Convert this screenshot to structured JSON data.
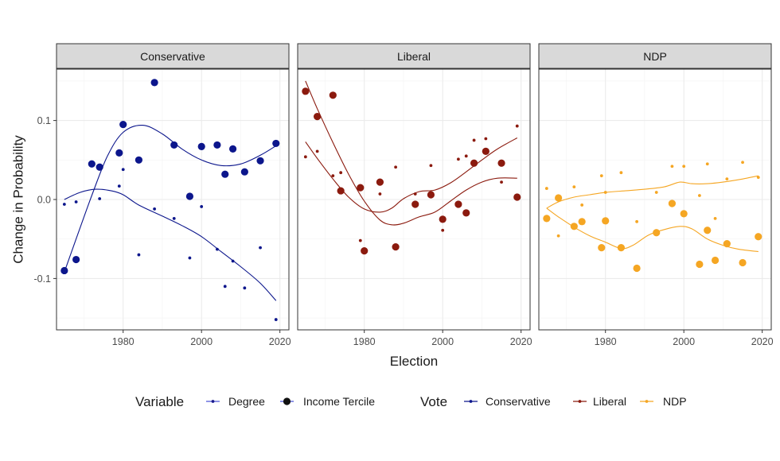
{
  "chart_data": {
    "type": "scatter",
    "title": "",
    "xlabel": "Election",
    "ylabel": "Change in Probability",
    "xlim": [
      1963,
      2022.3
    ],
    "ylim": [
      -0.165,
      0.165
    ],
    "x_ticks": [
      1980,
      2000,
      2020
    ],
    "x_tick_labels": [
      "1980",
      "2000",
      "2020"
    ],
    "y_ticks": [
      -0.1,
      0.0,
      0.1
    ],
    "y_tick_labels": [
      "-0.1",
      "0.0",
      "0.1"
    ],
    "grid": true,
    "facets": [
      {
        "label": "Conservative",
        "color": "#0c168c",
        "series": [
          {
            "name": "Income Tercile",
            "x": [
              1965,
              1968,
              1972,
              1974,
              1979,
              1980,
              1984,
              1988,
              1993,
              1997,
              2000,
              2004,
              2006,
              2008,
              2011,
              2015,
              2019
            ],
            "y": [
              -0.09,
              -0.076,
              0.045,
              0.041,
              0.059,
              0.095,
              0.05,
              0.148,
              0.069,
              0.004,
              0.067,
              0.069,
              0.032,
              0.064,
              0.035,
              0.049,
              0.071
            ],
            "smooth": [
              [
                1965,
                -0.092
              ],
              [
                1968,
                -0.05
              ],
              [
                1972,
                0.005
              ],
              [
                1976,
                0.055
              ],
              [
                1980,
                0.085
              ],
              [
                1985,
                0.094
              ],
              [
                1990,
                0.083
              ],
              [
                1995,
                0.064
              ],
              [
                2000,
                0.05
              ],
              [
                2005,
                0.043
              ],
              [
                2010,
                0.045
              ],
              [
                2015,
                0.056
              ],
              [
                2019,
                0.068
              ]
            ]
          },
          {
            "name": "Degree",
            "x": [
              1965,
              1968,
              1974,
              1979,
              1980,
              1984,
              1988,
              1993,
              1997,
              2000,
              2004,
              2006,
              2008,
              2011,
              2015,
              2019
            ],
            "y": [
              -0.006,
              -0.003,
              0.001,
              0.017,
              0.038,
              -0.07,
              -0.012,
              -0.024,
              -0.074,
              -0.009,
              -0.063,
              -0.11,
              -0.078,
              -0.112,
              -0.061,
              -0.152
            ],
            "smooth": [
              [
                1965,
                0.0
              ],
              [
                1969,
                0.009
              ],
              [
                1973,
                0.013
              ],
              [
                1977,
                0.011
              ],
              [
                1980,
                0.006
              ],
              [
                1984,
                -0.007
              ],
              [
                1990,
                -0.021
              ],
              [
                1995,
                -0.033
              ],
              [
                2000,
                -0.047
              ],
              [
                2005,
                -0.066
              ],
              [
                2010,
                -0.085
              ],
              [
                2015,
                -0.106
              ],
              [
                2019,
                -0.128
              ]
            ]
          }
        ]
      },
      {
        "label": "Liberal",
        "color": "#8b1a0e",
        "series": [
          {
            "name": "Income Tercile",
            "x": [
              1965,
              1968,
              1972,
              1974,
              1979,
              1980,
              1984,
              1988,
              1993,
              1997,
              2000,
              2004,
              2006,
              2008,
              2011,
              2015,
              2019
            ],
            "y": [
              0.137,
              0.105,
              0.132,
              0.011,
              0.015,
              -0.065,
              0.022,
              -0.06,
              -0.006,
              0.006,
              -0.025,
              -0.006,
              -0.017,
              0.046,
              0.061,
              0.046,
              0.003
            ],
            "smooth": [
              [
                1965,
                0.15
              ],
              [
                1968,
                0.115
              ],
              [
                1972,
                0.072
              ],
              [
                1976,
                0.032
              ],
              [
                1980,
                -0.002
              ],
              [
                1984,
                -0.026
              ],
              [
                1987,
                -0.032
              ],
              [
                1990,
                -0.03
              ],
              [
                1994,
                -0.022
              ],
              [
                1998,
                -0.016
              ],
              [
                2002,
                -0.002
              ],
              [
                2006,
                0.012
              ],
              [
                2010,
                0.022
              ],
              [
                2014,
                0.027
              ],
              [
                2019,
                0.027
              ]
            ]
          },
          {
            "name": "Degree",
            "x": [
              1965,
              1968,
              1972,
              1974,
              1979,
              1984,
              1988,
              1993,
              1997,
              2000,
              2004,
              2006,
              2008,
              2011,
              2015,
              2019
            ],
            "y": [
              0.054,
              0.061,
              0.03,
              0.034,
              -0.052,
              0.007,
              0.041,
              0.007,
              0.043,
              -0.039,
              0.051,
              0.055,
              0.075,
              0.077,
              0.022,
              0.093
            ],
            "smooth": [
              [
                1965,
                0.073
              ],
              [
                1968,
                0.052
              ],
              [
                1972,
                0.026
              ],
              [
                1976,
                0.003
              ],
              [
                1980,
                -0.012
              ],
              [
                1984,
                -0.016
              ],
              [
                1987,
                -0.011
              ],
              [
                1990,
                0.001
              ],
              [
                1994,
                0.01
              ],
              [
                1998,
                0.012
              ],
              [
                2002,
                0.021
              ],
              [
                2006,
                0.035
              ],
              [
                2010,
                0.05
              ],
              [
                2014,
                0.064
              ],
              [
                2019,
                0.078
              ]
            ]
          }
        ]
      },
      {
        "label": "NDP",
        "color": "#f5a623",
        "series": [
          {
            "name": "Income Tercile",
            "x": [
              1965,
              1968,
              1972,
              1974,
              1979,
              1980,
              1984,
              1988,
              1993,
              1997,
              2000,
              2004,
              2006,
              2008,
              2011,
              2015,
              2019
            ],
            "y": [
              -0.024,
              0.002,
              -0.034,
              -0.028,
              -0.061,
              -0.027,
              -0.061,
              -0.087,
              -0.042,
              -0.005,
              -0.018,
              -0.082,
              -0.039,
              -0.077,
              -0.056,
              -0.08,
              -0.047
            ],
            "smooth": [
              [
                1965,
                -0.011
              ],
              [
                1968,
                -0.022
              ],
              [
                1972,
                -0.035
              ],
              [
                1976,
                -0.046
              ],
              [
                1980,
                -0.054
              ],
              [
                1984,
                -0.062
              ],
              [
                1987,
                -0.058
              ],
              [
                1991,
                -0.045
              ],
              [
                1995,
                -0.038
              ],
              [
                1999,
                -0.034
              ],
              [
                2002,
                -0.037
              ],
              [
                2006,
                -0.05
              ],
              [
                2010,
                -0.058
              ],
              [
                2014,
                -0.063
              ],
              [
                2019,
                -0.066
              ]
            ]
          },
          {
            "name": "Degree",
            "x": [
              1965,
              1968,
              1972,
              1974,
              1979,
              1980,
              1984,
              1988,
              1993,
              1997,
              2000,
              2004,
              2006,
              2008,
              2011,
              2015,
              2019
            ],
            "y": [
              0.014,
              -0.046,
              0.016,
              -0.007,
              0.03,
              0.009,
              0.034,
              -0.028,
              0.009,
              0.042,
              0.042,
              0.005,
              0.045,
              -0.024,
              0.026,
              0.047,
              0.028
            ],
            "smooth": [
              [
                1965,
                -0.011
              ],
              [
                1968,
                -0.003
              ],
              [
                1972,
                0.003
              ],
              [
                1976,
                0.006
              ],
              [
                1980,
                0.009
              ],
              [
                1985,
                0.011
              ],
              [
                1990,
                0.013
              ],
              [
                1995,
                0.016
              ],
              [
                1999,
                0.022
              ],
              [
                2002,
                0.02
              ],
              [
                2006,
                0.02
              ],
              [
                2010,
                0.022
              ],
              [
                2015,
                0.026
              ],
              [
                2019,
                0.03
              ]
            ]
          }
        ]
      }
    ],
    "legend": {
      "position": "bottom",
      "groups": [
        {
          "title": "Variable",
          "entries": [
            {
              "label": "Degree",
              "marker": "small-point"
            },
            {
              "label": "Income Tercile",
              "marker": "large-point"
            }
          ]
        },
        {
          "title": "Vote",
          "entries": [
            {
              "label": "Conservative",
              "color": "#0c168c"
            },
            {
              "label": "Liberal",
              "color": "#8b1a0e"
            },
            {
              "label": "NDP",
              "color": "#f5a623"
            }
          ]
        }
      ]
    }
  }
}
